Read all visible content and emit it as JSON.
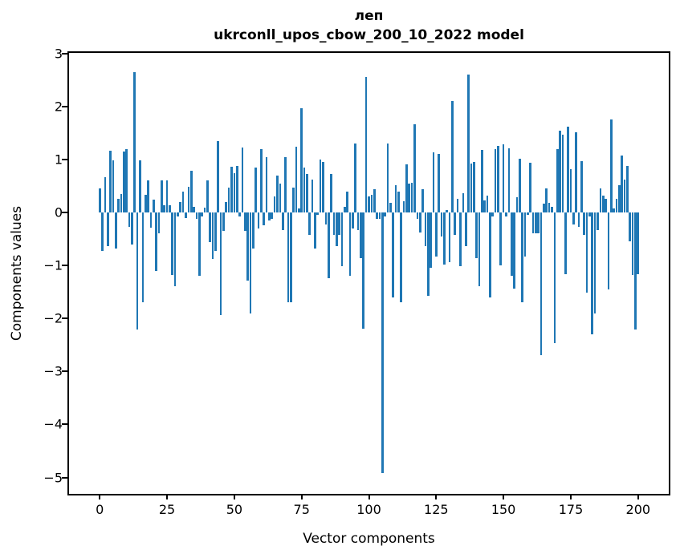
{
  "title": {
    "line1": "леп",
    "line2": "ukrconll_upos_cbow_200_10_2022 model"
  },
  "axes": {
    "x_tick_labels": [
      "0",
      "25",
      "50",
      "75",
      "100",
      "125",
      "150",
      "175",
      "200"
    ],
    "y_tick_labels": [
      "3",
      "2",
      "1",
      "0",
      "−1",
      "−2",
      "−3",
      "−4",
      "−5"
    ]
  },
  "colors": {
    "bar": "#1f77b4",
    "axis": "#000000",
    "background": "#ffffff"
  },
  "chart_data": {
    "type": "bar",
    "title": "леп\nukrconll_upos_cbow_200_10_2022 model",
    "xlabel": "Vector components",
    "ylabel": "Components values",
    "legend": null,
    "grid": false,
    "bar_color": "#1f77b4",
    "x_ticks": [
      0,
      25,
      50,
      75,
      100,
      125,
      150,
      175,
      200
    ],
    "y_ticks": [
      3,
      2,
      1,
      0,
      -1,
      -2,
      -3,
      -4,
      -5
    ],
    "xlim": [
      -11.4,
      211.4
    ],
    "ylim": [
      -5.31,
      3.01
    ],
    "bar_width": 0.8,
    "x_start": 0,
    "values": [
      0.45,
      -0.72,
      0.67,
      -0.63,
      1.16,
      0.99,
      -0.68,
      0.26,
      0.35,
      1.15,
      1.19,
      -0.28,
      -0.61,
      2.65,
      -2.21,
      0.99,
      -1.7,
      0.34,
      0.61,
      -0.29,
      0.24,
      -1.1,
      -0.4,
      0.61,
      0.13,
      0.6,
      0.14,
      -1.18,
      -1.39,
      -0.08,
      0.2,
      0.39,
      -0.11,
      0.49,
      0.79,
      0.1,
      -0.12,
      -1.19,
      -0.07,
      0.09,
      0.6,
      -0.56,
      -0.88,
      -0.73,
      1.35,
      -1.93,
      -0.35,
      0.19,
      0.47,
      0.86,
      0.74,
      0.87,
      -0.07,
      1.22,
      -0.35,
      -1.28,
      -1.91,
      -0.68,
      0.85,
      -0.3,
      1.19,
      -0.25,
      1.05,
      -0.15,
      -0.12,
      0.3,
      0.7,
      0.55,
      -0.33,
      1.05,
      -1.7,
      -1.69,
      0.47,
      1.24,
      0.08,
      1.96,
      0.85,
      0.72,
      -0.42,
      0.62,
      -0.68,
      -0.05,
      1.0,
      0.95,
      -0.22,
      -1.24,
      0.73,
      -0.43,
      -0.63,
      -0.43,
      -1.01,
      0.1,
      0.39,
      -1.19,
      -0.3,
      1.3,
      -0.33,
      -0.86,
      -2.19,
      2.55,
      0.3,
      0.33,
      0.44,
      -0.12,
      -0.12,
      -4.92,
      -0.08,
      1.3,
      0.18,
      -1.6,
      0.51,
      0.4,
      -1.7,
      0.21,
      0.9,
      0.55,
      0.56,
      1.66,
      -0.12,
      -0.38,
      0.44,
      -0.63,
      -1.58,
      -1.05,
      1.13,
      -0.84,
      1.11,
      -0.45,
      -0.99,
      0.05,
      -0.94,
      2.1,
      -0.43,
      0.26,
      -1.01,
      0.36,
      -0.63,
      2.6,
      0.92,
      0.95,
      -0.86,
      -1.39,
      1.18,
      0.23,
      0.31,
      -1.6,
      -0.07,
      1.19,
      1.25,
      -1.0,
      1.28,
      -0.07,
      1.21,
      -1.19,
      -1.44,
      0.28,
      1.01,
      -1.7,
      -0.83,
      -0.05,
      0.94,
      -0.4,
      -0.4,
      -0.4,
      -2.7,
      0.17,
      0.45,
      0.18,
      0.1,
      -2.47,
      1.2,
      1.55,
      1.46,
      -1.17,
      1.62,
      0.81,
      -0.22,
      1.52,
      -0.28,
      0.97,
      -0.43,
      -1.52,
      -0.07,
      -2.3,
      -1.91,
      -0.33,
      0.45,
      0.31,
      0.26,
      -1.45,
      1.75,
      0.08,
      0.25,
      0.51,
      1.08,
      0.62,
      0.87,
      -0.55,
      -1.18,
      -2.21,
      -1.17
    ]
  }
}
